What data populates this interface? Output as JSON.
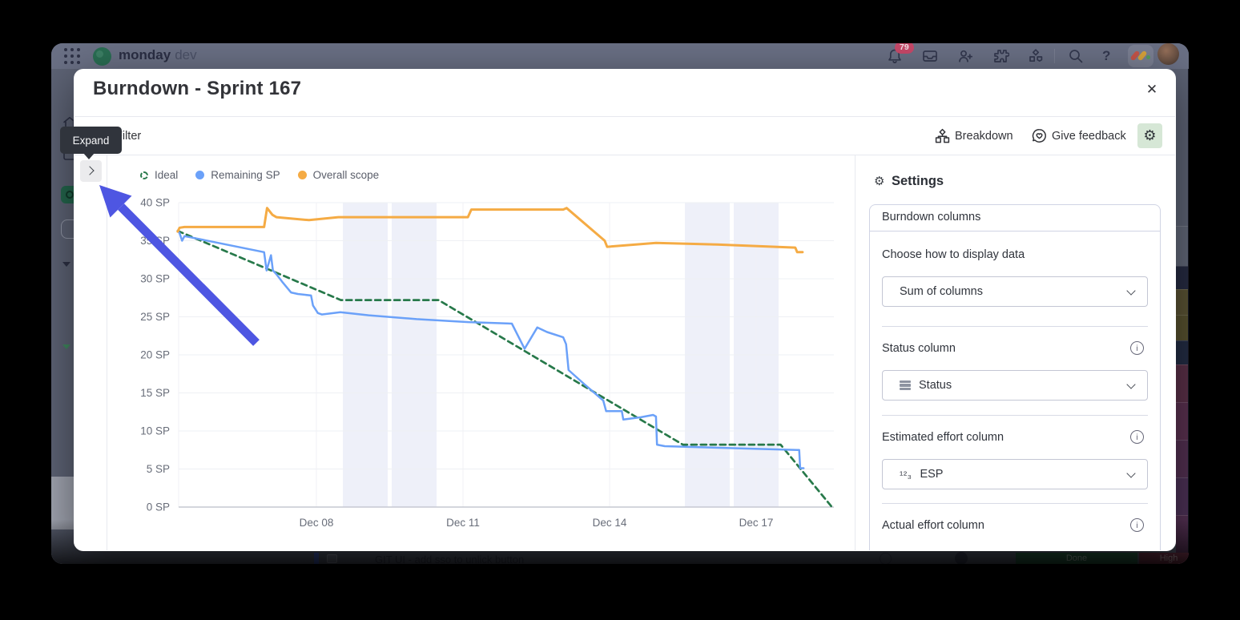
{
  "topbar": {
    "product_bold": "monday",
    "product_light": "dev",
    "notification_badge": "79",
    "help_glyph": "?"
  },
  "modal": {
    "title": "Burndown - Sprint 167",
    "filter_label": "Filter",
    "breakdown_label": "Breakdown",
    "feedback_label": "Give feedback",
    "expand_tooltip": "Expand"
  },
  "icons": {
    "gear": "⚙",
    "close": "✕",
    "info": "i",
    "numbers": "¹²₃"
  },
  "settings_panel": {
    "title": "Settings",
    "tab_label": "Burndown columns",
    "display_section_label": "Choose how to display data",
    "display_value": "Sum of columns",
    "status_section_label": "Status column",
    "status_value": "Status",
    "estimated_section_label": "Estimated effort column",
    "estimated_value": "ESP",
    "actual_section_label": "Actual effort column"
  },
  "chart_data": {
    "type": "line",
    "title": "Burndown - Sprint 167",
    "xlabel": "",
    "ylabel": "",
    "x_tick_labels": [
      "Dec 08",
      "Dec 11",
      "Dec 14",
      "Dec 17"
    ],
    "x_tick_days": [
      8,
      11,
      14,
      17
    ],
    "y_ticks": [
      0,
      5,
      10,
      15,
      20,
      25,
      30,
      35,
      40
    ],
    "y_tick_suffix": " SP",
    "ylim": [
      0,
      40
    ],
    "xlim_days": [
      5.18,
      18.6
    ],
    "grid": true,
    "legend_position": "top-left",
    "weekend_days": [
      9,
      10,
      16,
      17
    ],
    "band_color": "#eef0f9",
    "legend": [
      {
        "label": "Ideal",
        "color": "#27794a",
        "style": "dashed"
      },
      {
        "label": "Remaining SP",
        "color": "#6ba1f9",
        "style": "solid"
      },
      {
        "label": "Overall scope",
        "color": "#f5ab44",
        "style": "solid"
      }
    ],
    "series": [
      {
        "name": "Ideal",
        "color": "#27794a",
        "dash": "7 5",
        "width": 2.7,
        "points": [
          [
            5.16,
            36.3
          ],
          [
            8.5,
            27.2
          ],
          [
            10.5,
            27.2
          ],
          [
            15.5,
            8.2
          ],
          [
            17.5,
            8.2
          ],
          [
            18.55,
            0
          ]
        ]
      },
      {
        "name": "Remaining SP",
        "color": "#6ba1f9",
        "dash": "",
        "width": 2.5,
        "points": [
          [
            5.16,
            36.3
          ],
          [
            5.2,
            36.0
          ],
          [
            5.25,
            35.0
          ],
          [
            5.3,
            35.6
          ],
          [
            5.46,
            35.4
          ],
          [
            6.93,
            33.5
          ],
          [
            6.98,
            31.1
          ],
          [
            7.07,
            33.1
          ],
          [
            7.11,
            31.1
          ],
          [
            7.18,
            30.6
          ],
          [
            7.3,
            29.6
          ],
          [
            7.48,
            28.2
          ],
          [
            7.62,
            28.0
          ],
          [
            7.89,
            27.8
          ],
          [
            7.93,
            26.5
          ],
          [
            8.03,
            25.5
          ],
          [
            8.11,
            25.3
          ],
          [
            8.49,
            25.6
          ],
          [
            9.07,
            25.2
          ],
          [
            10.05,
            24.7
          ],
          [
            11.11,
            24.3
          ],
          [
            12.0,
            24.1
          ],
          [
            12.26,
            20.8
          ],
          [
            12.52,
            23.6
          ],
          [
            12.72,
            23.0
          ],
          [
            13.05,
            22.3
          ],
          [
            13.11,
            21.4
          ],
          [
            13.16,
            18.0
          ],
          [
            13.49,
            16.1
          ],
          [
            13.87,
            14.0
          ],
          [
            13.93,
            12.6
          ],
          [
            14.25,
            12.6
          ],
          [
            14.28,
            11.5
          ],
          [
            14.64,
            11.8
          ],
          [
            14.89,
            12.1
          ],
          [
            14.95,
            11.9
          ],
          [
            14.97,
            8.2
          ],
          [
            15.13,
            8.0
          ],
          [
            17.84,
            7.5
          ],
          [
            17.88,
            7.5
          ],
          [
            17.9,
            5.1
          ],
          [
            17.97,
            5.1
          ]
        ]
      },
      {
        "name": "Overall scope",
        "color": "#f5ab44",
        "dash": "",
        "width": 3,
        "points": [
          [
            5.16,
            36.2
          ],
          [
            5.2,
            36.7
          ],
          [
            5.3,
            36.8
          ],
          [
            6.93,
            36.8
          ],
          [
            6.99,
            39.3
          ],
          [
            7.1,
            38.4
          ],
          [
            7.18,
            38.1
          ],
          [
            7.85,
            37.7
          ],
          [
            8.45,
            38.1
          ],
          [
            11.1,
            38.1
          ],
          [
            11.17,
            39.1
          ],
          [
            13.05,
            39.1
          ],
          [
            13.12,
            39.3
          ],
          [
            13.9,
            35.0
          ],
          [
            13.95,
            34.2
          ],
          [
            14.95,
            34.7
          ],
          [
            16.2,
            34.5
          ],
          [
            17.8,
            34.1
          ],
          [
            17.84,
            33.5
          ],
          [
            17.95,
            33.5
          ]
        ]
      }
    ]
  },
  "background": {
    "task_text": "GIT UI - add sso to unlick button",
    "status_chip": "Done",
    "priority_chip": "High",
    "strip_blocks": [
      {
        "h": 50,
        "c": "#626879"
      },
      {
        "h": 29,
        "c": "#262b42"
      },
      {
        "h": 32,
        "c": "#5a5334"
      },
      {
        "h": 32,
        "c": "#57512f"
      },
      {
        "h": 30,
        "c": "#232c44"
      },
      {
        "h": 47,
        "c": "#5a3048"
      },
      {
        "h": 47,
        "c": "#5a3150"
      },
      {
        "h": 47,
        "c": "#523051"
      },
      {
        "h": 47,
        "c": "#4c3156"
      },
      {
        "h": 47,
        "c": "#533052"
      },
      {
        "h": 14,
        "c": "#3a2a3c"
      }
    ]
  }
}
